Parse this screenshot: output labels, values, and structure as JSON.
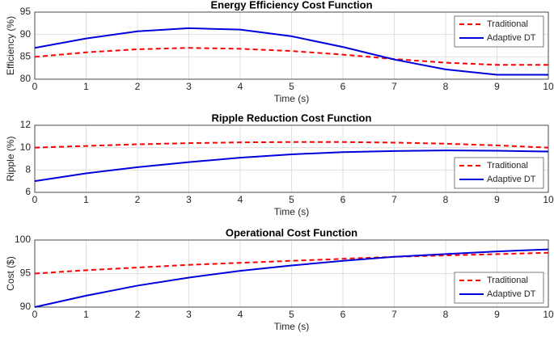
{
  "chart_data": [
    {
      "type": "line",
      "title": "Energy Efficiency Cost Function",
      "xlabel": "Time (s)",
      "ylabel": "Efficiency (%)",
      "x": [
        0,
        1,
        2,
        3,
        4,
        5,
        6,
        7,
        8,
        9,
        10
      ],
      "xlim": [
        0,
        10
      ],
      "xticks": [
        0,
        1,
        2,
        3,
        4,
        5,
        6,
        7,
        8,
        9,
        10
      ],
      "ylim": [
        80,
        95
      ],
      "yticks": [
        80,
        85,
        90,
        95
      ],
      "grid": true,
      "legend": "upper right",
      "series": [
        {
          "name": "Traditional",
          "color": "#ff0000",
          "dash": true,
          "values": [
            85,
            86,
            86.7,
            87,
            86.8,
            86.3,
            85.5,
            84.5,
            83.7,
            83.2,
            83.2
          ]
        },
        {
          "name": "Adaptive DT",
          "color": "#0000dd",
          "dash": false,
          "values": [
            87,
            89.1,
            90.7,
            91.4,
            91.1,
            89.6,
            87.2,
            84.4,
            82.2,
            81,
            81
          ]
        }
      ]
    },
    {
      "type": "line",
      "title": "Ripple Reduction Cost Function",
      "xlabel": "Time (s)",
      "ylabel": "Ripple (%)",
      "x": [
        0,
        1,
        2,
        3,
        4,
        5,
        6,
        7,
        8,
        9,
        10
      ],
      "xlim": [
        0,
        10
      ],
      "xticks": [
        0,
        1,
        2,
        3,
        4,
        5,
        6,
        7,
        8,
        9,
        10
      ],
      "ylim": [
        6,
        12
      ],
      "yticks": [
        6,
        8,
        10,
        12
      ],
      "grid": true,
      "legend": "lower right",
      "series": [
        {
          "name": "Traditional",
          "color": "#ff0000",
          "dash": true,
          "values": [
            10,
            10.15,
            10.3,
            10.4,
            10.47,
            10.5,
            10.5,
            10.45,
            10.35,
            10.2,
            10
          ]
        },
        {
          "name": "Adaptive DT",
          "color": "#0000dd",
          "dash": false,
          "values": [
            7,
            7.7,
            8.25,
            8.7,
            9.1,
            9.4,
            9.6,
            9.7,
            9.75,
            9.72,
            9.65
          ]
        }
      ]
    },
    {
      "type": "line",
      "title": "Operational Cost Function",
      "xlabel": "Time (s)",
      "ylabel": "Cost ($)",
      "x": [
        0,
        1,
        2,
        3,
        4,
        5,
        6,
        7,
        8,
        9,
        10
      ],
      "xlim": [
        0,
        10
      ],
      "xticks": [
        0,
        1,
        2,
        3,
        4,
        5,
        6,
        7,
        8,
        9,
        10
      ],
      "ylim": [
        90,
        100
      ],
      "yticks": [
        90,
        95,
        100
      ],
      "grid": true,
      "legend": "lower right",
      "series": [
        {
          "name": "Traditional",
          "color": "#ff0000",
          "dash": true,
          "values": [
            95,
            95.5,
            95.9,
            96.3,
            96.6,
            96.9,
            97.2,
            97.5,
            97.7,
            97.9,
            98.1
          ]
        },
        {
          "name": "Adaptive DT",
          "color": "#0000dd",
          "dash": false,
          "values": [
            90,
            91.7,
            93.2,
            94.4,
            95.4,
            96.2,
            96.9,
            97.5,
            97.9,
            98.3,
            98.6
          ]
        }
      ]
    }
  ]
}
